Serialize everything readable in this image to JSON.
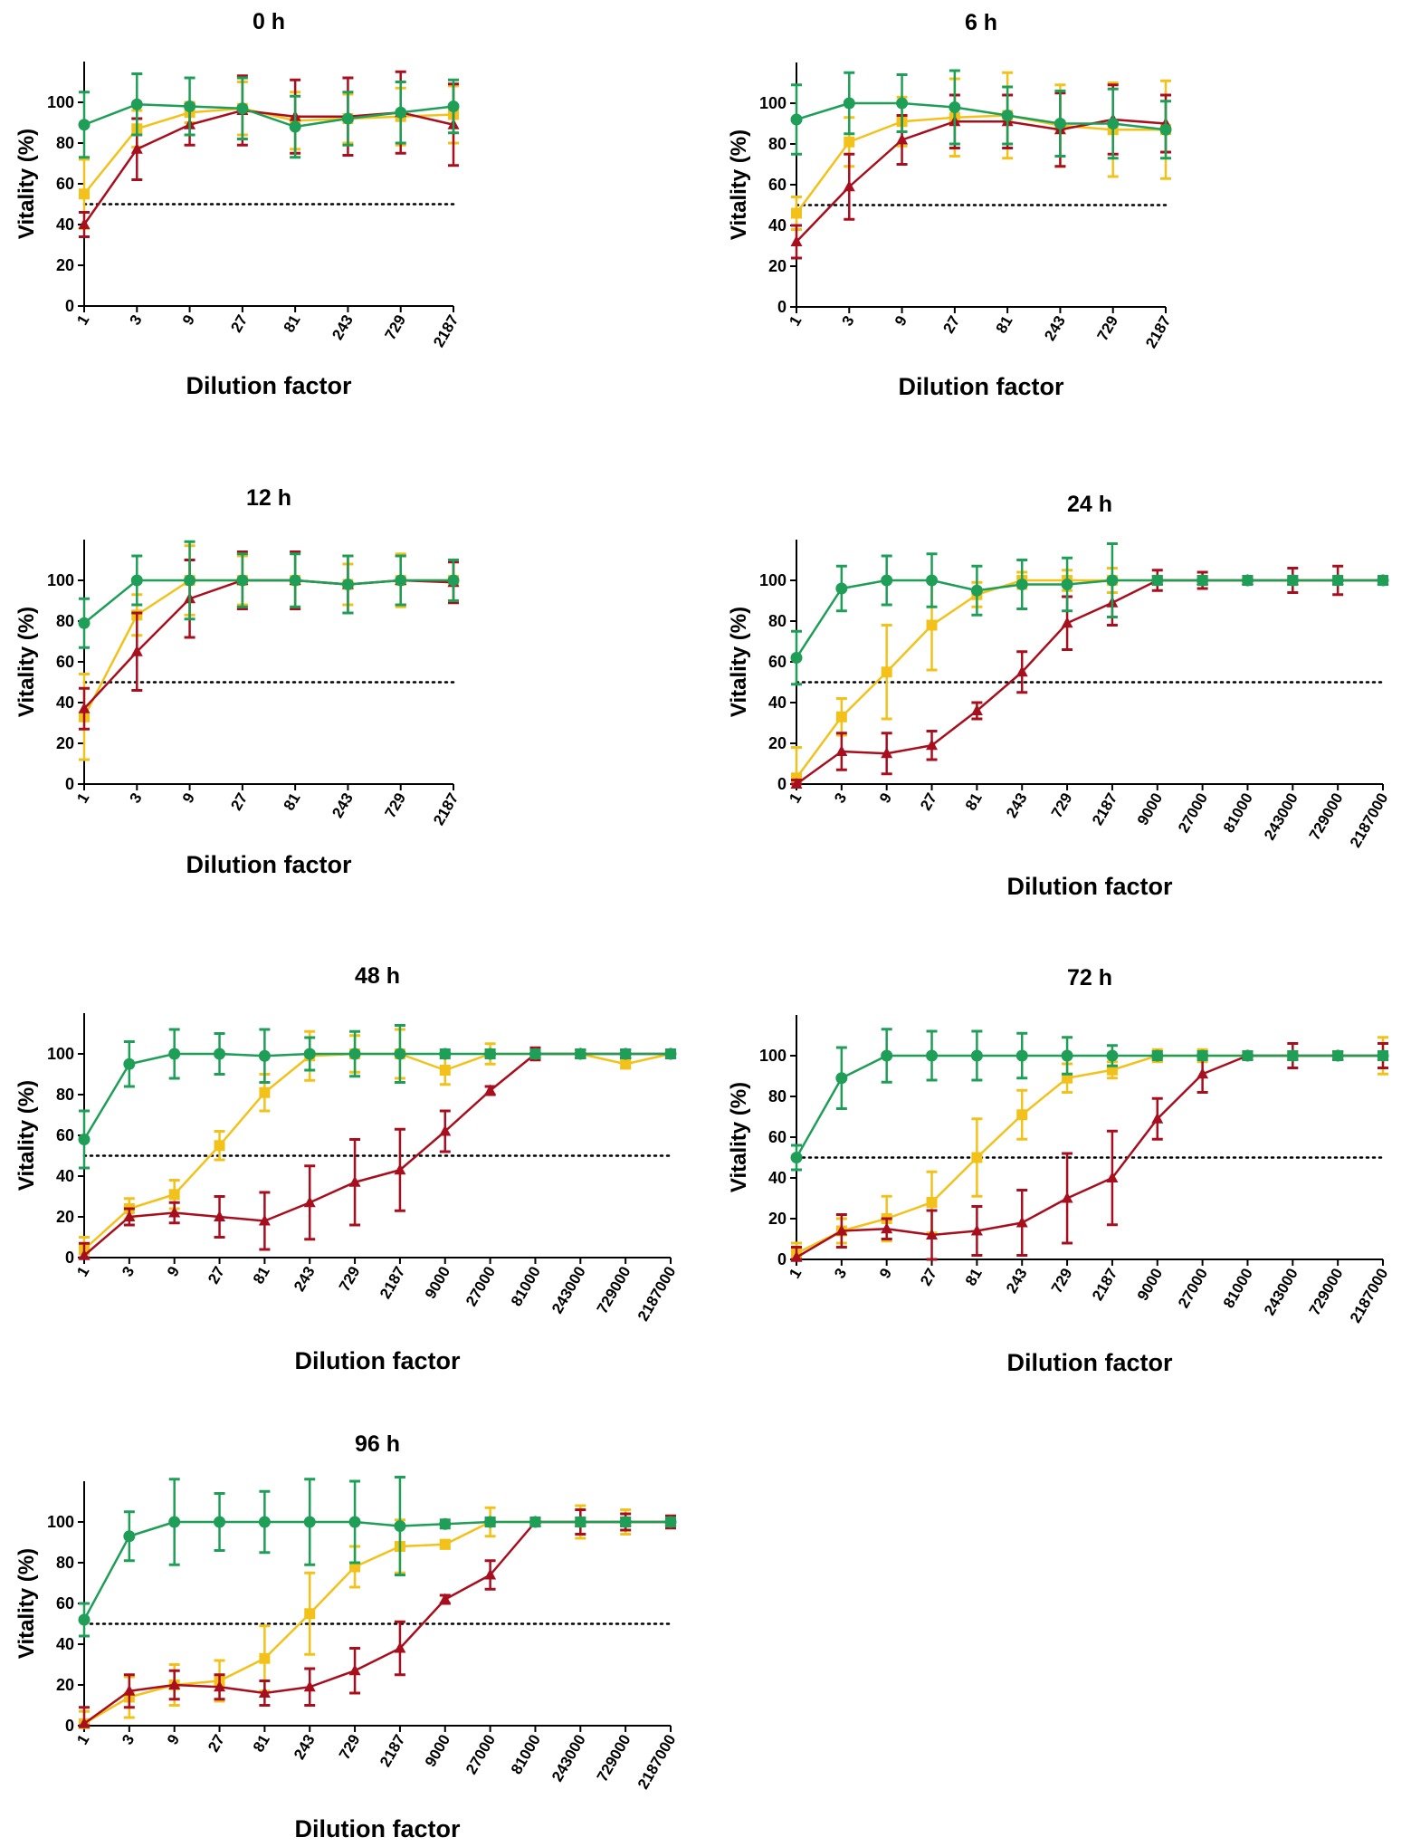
{
  "figure": {
    "series_names": [
      "Red series (triangles)",
      "Yellow series (squares)",
      "Green series (circles)"
    ]
  },
  "colors": {
    "red": "#a80f1e",
    "yellow": "#f2c21b",
    "green": "#1e9e57",
    "axis": "#000000",
    "threshold": "#000000"
  },
  "chart_data": [
    {
      "type": "line",
      "title": "0 h",
      "xlabel": "Dilution factor",
      "ylabel": "Vitality (%)",
      "categories": [
        "1",
        "3",
        "9",
        "27",
        "81",
        "243",
        "729",
        "2187"
      ],
      "ylim": [
        0,
        120
      ],
      "yticks": [
        0,
        20,
        40,
        60,
        80,
        100
      ],
      "threshold": 50,
      "series": [
        {
          "name": "red",
          "marker": "triangle",
          "values": [
            40,
            77,
            89,
            96,
            93,
            93,
            95,
            89
          ],
          "errors": [
            6,
            15,
            10,
            17,
            18,
            19,
            20,
            20
          ]
        },
        {
          "name": "yellow",
          "marker": "square",
          "values": [
            55,
            87,
            95,
            97,
            91,
            92,
            93,
            94
          ],
          "errors": [
            17,
            9,
            5,
            13,
            14,
            12,
            14,
            14
          ]
        },
        {
          "name": "green",
          "marker": "circle",
          "values": [
            89,
            99,
            98,
            97,
            88,
            92,
            95,
            98
          ],
          "errors": [
            16,
            15,
            14,
            15,
            15,
            13,
            15,
            13
          ]
        }
      ]
    },
    {
      "type": "line",
      "title": "6 h",
      "xlabel": "Dilution factor",
      "ylabel": "Vitality (%)",
      "categories": [
        "1",
        "3",
        "9",
        "27",
        "81",
        "243",
        "729",
        "2187"
      ],
      "ylim": [
        0,
        120
      ],
      "yticks": [
        0,
        20,
        40,
        60,
        80,
        100
      ],
      "threshold": 50,
      "series": [
        {
          "name": "red",
          "marker": "triangle",
          "values": [
            32,
            59,
            82,
            91,
            91,
            87,
            92,
            90
          ],
          "errors": [
            8,
            16,
            12,
            13,
            13,
            18,
            17,
            14
          ]
        },
        {
          "name": "yellow",
          "marker": "square",
          "values": [
            46,
            81,
            91,
            93,
            94,
            89,
            87,
            87
          ],
          "errors": [
            8,
            12,
            12,
            19,
            21,
            20,
            23,
            24
          ]
        },
        {
          "name": "green",
          "marker": "circle",
          "values": [
            92,
            100,
            100,
            98,
            94,
            90,
            90,
            87
          ],
          "errors": [
            17,
            15,
            14,
            18,
            14,
            16,
            17,
            14
          ]
        }
      ]
    },
    {
      "type": "line",
      "title": "12 h",
      "xlabel": "Dilution factor",
      "ylabel": "Vitality (%)",
      "categories": [
        "1",
        "3",
        "9",
        "27",
        "81",
        "243",
        "729",
        "2187"
      ],
      "ylim": [
        0,
        120
      ],
      "yticks": [
        0,
        20,
        40,
        60,
        80,
        100
      ],
      "threshold": 50,
      "series": [
        {
          "name": "red",
          "marker": "triangle",
          "values": [
            37,
            65,
            91,
            100,
            100,
            98,
            100,
            99
          ],
          "errors": [
            10,
            19,
            19,
            14,
            14,
            14,
            12,
            10
          ]
        },
        {
          "name": "yellow",
          "marker": "square",
          "values": [
            33,
            83,
            100,
            100,
            100,
            98,
            100,
            100
          ],
          "errors": [
            21,
            10,
            17,
            12,
            14,
            10,
            13,
            10
          ]
        },
        {
          "name": "green",
          "marker": "circle",
          "values": [
            79,
            100,
            100,
            100,
            100,
            98,
            100,
            100
          ],
          "errors": [
            12,
            12,
            19,
            13,
            13,
            14,
            12,
            10
          ]
        }
      ]
    },
    {
      "type": "line",
      "title": "24 h",
      "xlabel": "Dilution factor",
      "ylabel": "Vitality (%)",
      "categories": [
        "1",
        "3",
        "9",
        "27",
        "81",
        "243",
        "729",
        "2187",
        "9000",
        "27000",
        "81000",
        "243000",
        "729000",
        "2187000"
      ],
      "ylim": [
        0,
        120
      ],
      "yticks": [
        0,
        20,
        40,
        60,
        80,
        100
      ],
      "threshold": 50,
      "series": [
        {
          "name": "red",
          "marker": "triangle",
          "values": [
            0,
            16,
            15,
            19,
            36,
            55,
            79,
            89,
            100,
            100,
            100,
            100,
            100,
            100
          ],
          "errors": [
            2,
            9,
            10,
            7,
            4,
            10,
            13,
            11,
            5,
            4,
            2,
            6,
            7,
            2
          ]
        },
        {
          "name": "yellow",
          "marker": "square",
          "values": [
            3,
            33,
            55,
            78,
            93,
            100,
            100,
            100,
            100,
            100,
            100,
            100,
            100,
            100
          ],
          "errors": [
            15,
            9,
            23,
            22,
            6,
            4,
            5,
            6,
            2,
            2,
            2,
            2,
            2,
            2
          ]
        },
        {
          "name": "green",
          "marker": "circle",
          "values": [
            62,
            96,
            100,
            100,
            95,
            98,
            98,
            100,
            100,
            100,
            100,
            100,
            100,
            100
          ],
          "errors": [
            13,
            11,
            12,
            13,
            12,
            12,
            13,
            18,
            2,
            2,
            2,
            2,
            2,
            2
          ]
        }
      ]
    },
    {
      "type": "line",
      "title": "48 h",
      "xlabel": "Dilution factor",
      "ylabel": "Vitality (%)",
      "categories": [
        "1",
        "3",
        "9",
        "27",
        "81",
        "243",
        "729",
        "2187",
        "9000",
        "27000",
        "81000",
        "243000",
        "729000",
        "2187000"
      ],
      "ylim": [
        0,
        120
      ],
      "yticks": [
        0,
        20,
        40,
        60,
        80,
        100
      ],
      "threshold": 50,
      "series": [
        {
          "name": "red",
          "marker": "triangle",
          "values": [
            1,
            20,
            22,
            20,
            18,
            27,
            37,
            43,
            62,
            82,
            100,
            100,
            100,
            100
          ],
          "errors": [
            6,
            4,
            5,
            10,
            14,
            18,
            21,
            20,
            10,
            2,
            3,
            2,
            2,
            2
          ]
        },
        {
          "name": "yellow",
          "marker": "square",
          "values": [
            4,
            24,
            31,
            55,
            81,
            99,
            100,
            100,
            92,
            100,
            100,
            100,
            95,
            100
          ],
          "errors": [
            6,
            5,
            7,
            7,
            9,
            12,
            9,
            12,
            7,
            5,
            2,
            2,
            2,
            2
          ]
        },
        {
          "name": "green",
          "marker": "circle",
          "values": [
            58,
            95,
            100,
            100,
            99,
            100,
            100,
            100,
            100,
            100,
            100,
            100,
            100,
            100
          ],
          "errors": [
            14,
            11,
            12,
            10,
            13,
            8,
            11,
            14,
            2,
            2,
            2,
            2,
            2,
            2
          ]
        }
      ]
    },
    {
      "type": "line",
      "title": "72 h",
      "xlabel": "Dilution factor",
      "ylabel": "Vitality (%)",
      "categories": [
        "1",
        "3",
        "9",
        "27",
        "81",
        "243",
        "729",
        "2187",
        "9000",
        "27000",
        "81000",
        "243000",
        "729000",
        "2187000"
      ],
      "ylim": [
        0,
        120
      ],
      "yticks": [
        0,
        20,
        40,
        60,
        80,
        100
      ],
      "threshold": 50,
      "series": [
        {
          "name": "red",
          "marker": "triangle",
          "values": [
            1,
            14,
            15,
            12,
            14,
            18,
            30,
            40,
            69,
            91,
            100,
            100,
            100,
            100
          ],
          "errors": [
            5,
            8,
            5,
            12,
            12,
            16,
            22,
            23,
            10,
            9,
            2,
            6,
            2,
            6
          ]
        },
        {
          "name": "yellow",
          "marker": "square",
          "values": [
            3,
            14,
            20,
            28,
            50,
            71,
            89,
            93,
            100,
            100,
            100,
            100,
            100,
            100
          ],
          "errors": [
            5,
            6,
            11,
            15,
            19,
            12,
            7,
            4,
            3,
            3,
            2,
            2,
            2,
            9
          ]
        },
        {
          "name": "green",
          "marker": "circle",
          "values": [
            50,
            89,
            100,
            100,
            100,
            100,
            100,
            100,
            100,
            100,
            100,
            100,
            100,
            100
          ],
          "errors": [
            6,
            15,
            13,
            12,
            12,
            11,
            9,
            5,
            2,
            2,
            2,
            2,
            2,
            2
          ]
        }
      ]
    },
    {
      "type": "line",
      "title": "96 h",
      "xlabel": "Dilution factor",
      "ylabel": "Vitality (%)",
      "categories": [
        "1",
        "3",
        "9",
        "27",
        "81",
        "243",
        "729",
        "2187",
        "9000",
        "27000",
        "81000",
        "243000",
        "729000",
        "2187000"
      ],
      "ylim": [
        0,
        120
      ],
      "yticks": [
        0,
        20,
        40,
        60,
        80,
        100
      ],
      "threshold": 50,
      "series": [
        {
          "name": "red",
          "marker": "triangle",
          "values": [
            1,
            17,
            20,
            19,
            16,
            19,
            27,
            38,
            62,
            74,
            100,
            100,
            100,
            100
          ],
          "errors": [
            8,
            8,
            7,
            6,
            6,
            9,
            11,
            13,
            2,
            7,
            2,
            6,
            4,
            3
          ]
        },
        {
          "name": "yellow",
          "marker": "square",
          "values": [
            1,
            14,
            20,
            22,
            33,
            55,
            78,
            88,
            89,
            100,
            100,
            100,
            100,
            100
          ],
          "errors": [
            6,
            10,
            10,
            10,
            16,
            20,
            10,
            13,
            2,
            7,
            2,
            8,
            6,
            2
          ]
        },
        {
          "name": "green",
          "marker": "circle",
          "values": [
            52,
            93,
            100,
            100,
            100,
            100,
            100,
            98,
            99,
            100,
            100,
            100,
            100,
            100
          ],
          "errors": [
            8,
            12,
            21,
            14,
            15,
            21,
            20,
            24,
            2,
            2,
            2,
            2,
            2,
            2
          ]
        }
      ]
    }
  ]
}
